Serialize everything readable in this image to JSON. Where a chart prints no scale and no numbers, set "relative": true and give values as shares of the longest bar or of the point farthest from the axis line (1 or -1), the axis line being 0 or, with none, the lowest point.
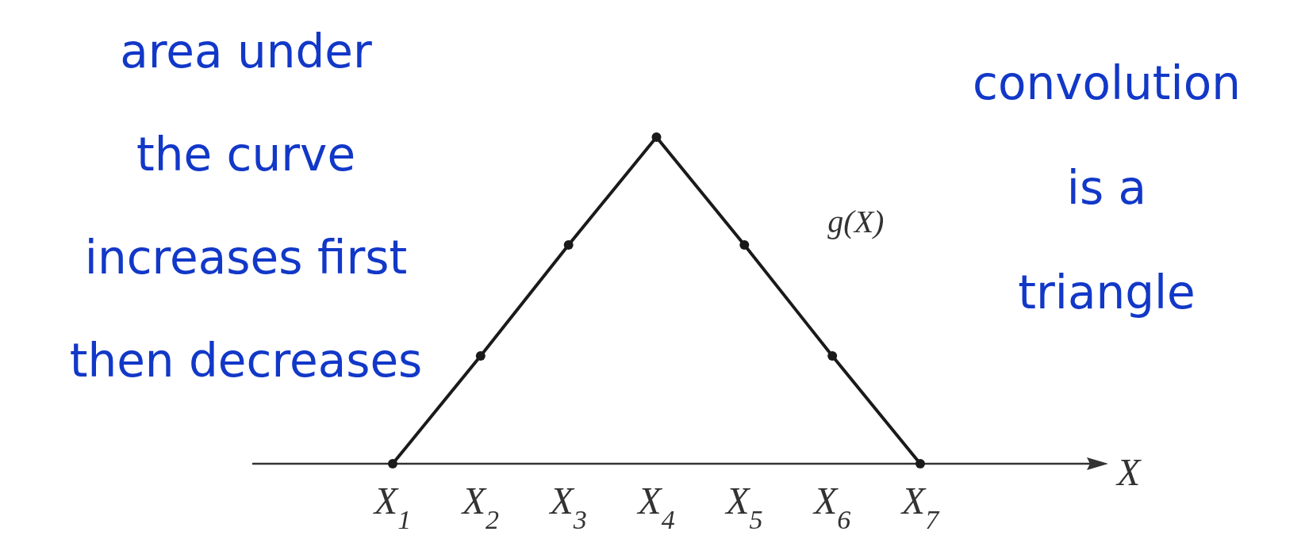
{
  "chart_data": {
    "type": "line",
    "relative": true,
    "xlabel": "X",
    "categories": [
      "X$_{1}$",
      "X$_{2}$",
      "X$_{3}$",
      "X$_{4}$",
      "X$_{5}$",
      "X$_{6}$",
      "X$_{7}$"
    ],
    "series": [
      {
        "name": "g(X)",
        "color": "#1a1a1a",
        "values": [
          0,
          0.33,
          0.67,
          1,
          0.67,
          0.33,
          0
        ]
      }
    ],
    "marker": "circle",
    "line_style": "solid",
    "annotations": [
      "area under\nthe curve\nincreases first\nthen decreases",
      "convolution\nis a\ntriangle"
    ]
  }
}
